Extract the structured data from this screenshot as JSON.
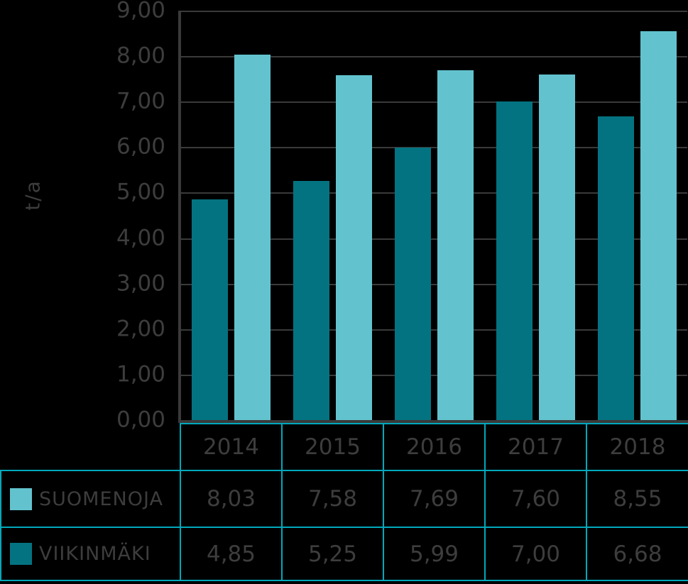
{
  "colors": {
    "background": "#000000",
    "text": "#3d3d3d",
    "axis": "#3a3a3a",
    "grid": "#3a3a3a",
    "table_border": "#00a9bc",
    "series_suomenoja": "#62c3cf",
    "series_viikinmaki": "#047381"
  },
  "chart_data": {
    "type": "bar",
    "categories": [
      "2014",
      "2015",
      "2016",
      "2017",
      "2018"
    ],
    "series": [
      {
        "name": "SUOMENOJA",
        "color": "#62c3cf",
        "values": [
          8.03,
          7.58,
          7.69,
          7.6,
          8.55
        ]
      },
      {
        "name": "VIIKINMÄKI",
        "color": "#047381",
        "values": [
          4.85,
          5.25,
          5.99,
          7.0,
          6.68
        ]
      }
    ],
    "title": "",
    "xlabel": "",
    "ylabel": "t/a",
    "ylim": [
      0,
      9
    ],
    "ytick_labels": [
      "9,00",
      "8,00",
      "7,00",
      "6,00",
      "5,00",
      "4,00",
      "3,00",
      "2,00",
      "1,00",
      "0,00"
    ],
    "grid": true,
    "legend_position": "table-below"
  },
  "table": {
    "header": [
      "2014",
      "2015",
      "2016",
      "2017",
      "2018"
    ],
    "rows": [
      {
        "name": "SUOMENOJA",
        "swatch": "#62c3cf",
        "values": [
          "8,03",
          "7,58",
          "7,69",
          "7,60",
          "8,55"
        ]
      },
      {
        "name": "VIIKINMÄKI",
        "swatch": "#047381",
        "values": [
          "4,85",
          "5,25",
          "5,99",
          "7,00",
          "6,68"
        ]
      }
    ]
  }
}
